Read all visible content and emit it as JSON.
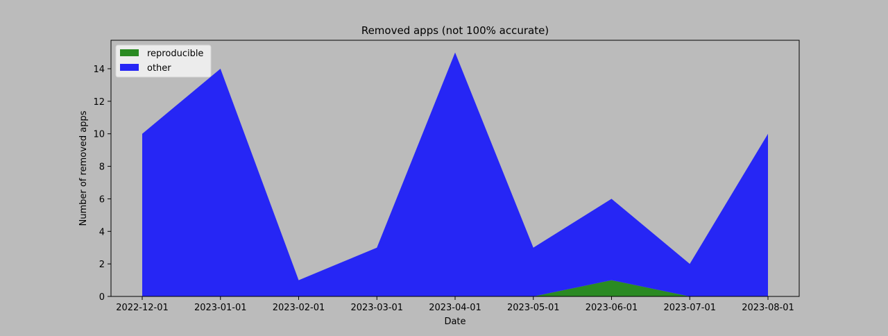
{
  "chart_data": {
    "type": "area",
    "stacked": true,
    "title": "Removed apps (not 100% accurate)",
    "xlabel": "Date",
    "ylabel": "Number of removed apps",
    "x": [
      "2022-12-01",
      "2023-01-01",
      "2023-02-01",
      "2023-03-01",
      "2023-04-01",
      "2023-05-01",
      "2023-06-01",
      "2023-07-01",
      "2023-08-01"
    ],
    "series": [
      {
        "name": "reproducible",
        "color": "#2a8a22",
        "values": [
          0,
          0,
          0,
          0,
          0,
          0,
          1,
          0,
          0
        ]
      },
      {
        "name": "other",
        "color": "#2626f5",
        "values": [
          10,
          14,
          1,
          3,
          15,
          3,
          5,
          2,
          10
        ]
      }
    ],
    "xticks": [
      "2022-12-01",
      "2023-01-01",
      "2023-02-01",
      "2023-03-01",
      "2023-04-01",
      "2023-05-01",
      "2023-06-01",
      "2023-07-01",
      "2023-08-01"
    ],
    "yticks": [
      0,
      2,
      4,
      6,
      8,
      10,
      12,
      14
    ],
    "ylim": [
      0,
      15.75
    ],
    "grid": false,
    "legend": "upper-left",
    "background": "#bbbbbb"
  }
}
